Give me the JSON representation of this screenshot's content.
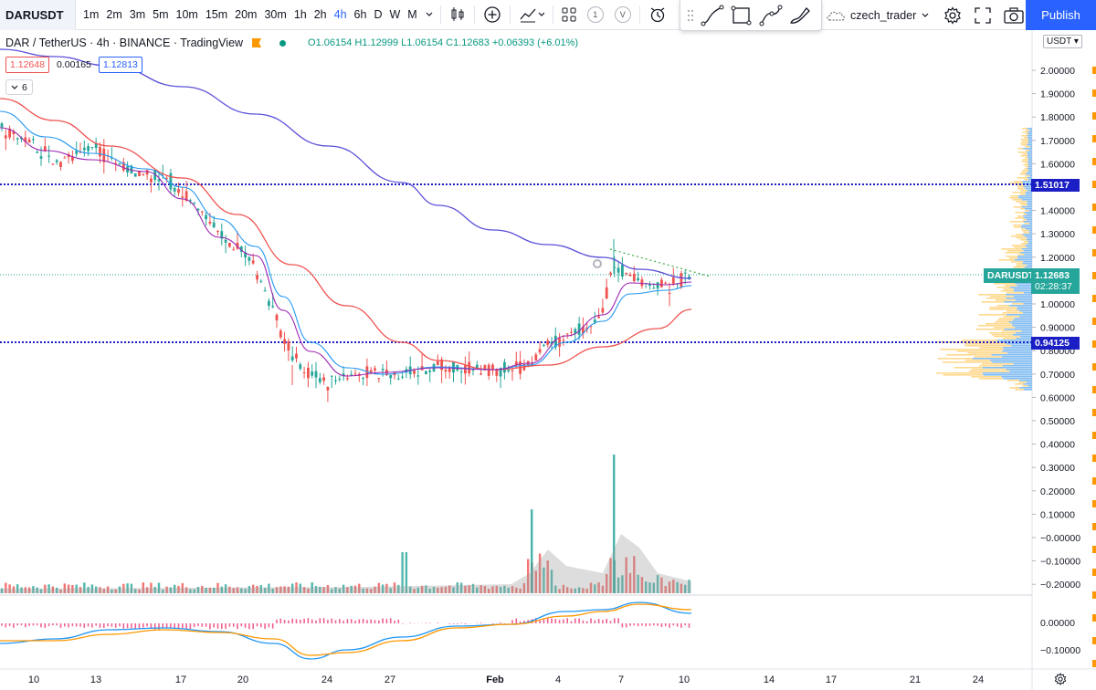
{
  "toolbar": {
    "symbol": "DARUSDT",
    "intervals": [
      "1m",
      "2m",
      "3m",
      "5m",
      "10m",
      "15m",
      "20m",
      "30m",
      "1h",
      "2h",
      "4h",
      "6h",
      "D",
      "W",
      "M"
    ],
    "active_interval": "4h",
    "badge_1": "1",
    "badge_v": "V",
    "layout_name": "czech_trader",
    "publish_label": "Publish"
  },
  "legend": {
    "title": "DAR / TetherUS · 4h · BINANCE · TradingView",
    "ohlc": "O1.06154 H1.12999 L1.06154 C1.12683 +0.06393 (+6.01%)",
    "indicator_val_1": "1.12648",
    "indicator_val_2": "0.00165",
    "indicator_val_3": "1.12813",
    "collapsed_count": "6"
  },
  "price_axis": {
    "currency": "USDT",
    "main_ticks": [
      "2.00000",
      "1.90000",
      "1.80000",
      "1.70000",
      "1.60000",
      "1.50000",
      "1.40000",
      "1.30000",
      "1.20000",
      "1.10000",
      "1.00000",
      "0.90000",
      "0.80000",
      "0.70000",
      "0.60000",
      "0.50000",
      "0.40000",
      "0.30000",
      "0.20000",
      "0.10000",
      "−0.00000",
      "−0.10000",
      "−0.20000"
    ],
    "osc_ticks": [
      "0.00000",
      "−0.10000"
    ],
    "level_upper": "1.51017",
    "level_lower": "0.94125",
    "current_symbol": "DARUSDT",
    "current_price": "1.12683",
    "countdown": "02:28:37"
  },
  "time_axis": {
    "ticks": [
      "10",
      "13",
      "17",
      "20",
      "24",
      "27",
      "Feb",
      "4",
      "7",
      "10",
      "14",
      "17",
      "21",
      "24"
    ]
  },
  "colors": {
    "accent": "#2962ff",
    "up": "#26a69a",
    "down": "#ef5350",
    "ma_long": "#5b4fd9",
    "ma_mid": "#ef5350",
    "ma_short": "#2196f3",
    "ma_fast": "#9c27b0",
    "level": "#1a1ec4"
  },
  "chart_data": {
    "type": "candlestick",
    "symbol": "DAR / TetherUS",
    "interval": "4h",
    "exchange": "BINANCE",
    "ylim": [
      0.6,
      2.0
    ],
    "horizontal_levels": [
      1.51017,
      0.94125
    ],
    "last_price": 1.12683,
    "price_path": [
      [
        "10",
        1.65
      ],
      [
        "11",
        1.7
      ],
      [
        "12",
        1.58
      ],
      [
        "13",
        1.64
      ],
      [
        "14",
        1.6
      ],
      [
        "15",
        1.57
      ],
      [
        "17",
        1.52
      ],
      [
        "18",
        1.38
      ],
      [
        "19",
        1.27
      ],
      [
        "20",
        1.2
      ],
      [
        "21",
        1.0
      ],
      [
        "22",
        0.85
      ],
      [
        "23",
        0.77
      ],
      [
        "24",
        0.7
      ],
      [
        "25",
        0.73
      ],
      [
        "26",
        0.72
      ],
      [
        "27",
        0.7
      ],
      [
        "28",
        0.73
      ],
      [
        "30",
        0.75
      ],
      [
        "31",
        0.76
      ],
      [
        "Feb",
        0.72
      ],
      [
        "2",
        0.73
      ],
      [
        "3",
        0.86
      ],
      [
        "4",
        0.9
      ],
      [
        "5",
        0.88
      ],
      [
        "6",
        1.12
      ],
      [
        "7",
        1.18
      ],
      [
        "8",
        1.09
      ],
      [
        "9",
        1.1
      ],
      [
        "10",
        1.13
      ]
    ]
  }
}
